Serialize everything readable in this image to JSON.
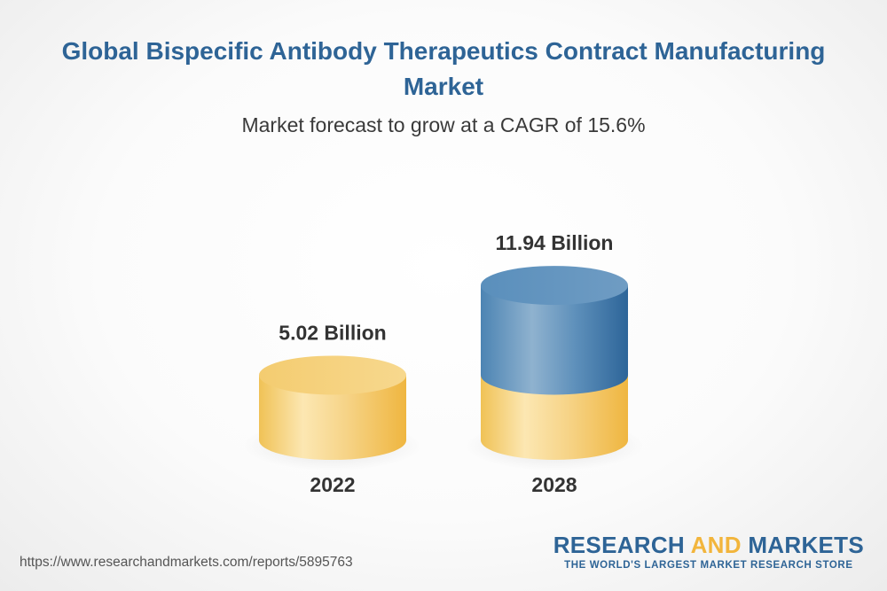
{
  "header": {
    "title": "Global Bispecific Antibody Therapeutics Contract Manufacturing Market",
    "subtitle": "Market forecast to grow at a CAGR of 15.6%"
  },
  "chart_data": {
    "type": "bar",
    "style": "3d-cylinder",
    "categories": [
      "2022",
      "2028"
    ],
    "values": [
      5.02,
      11.94
    ],
    "value_labels": [
      "5.02 Billion",
      "11.94 Billion"
    ],
    "title": "Global Bispecific Antibody Therapeutics Contract Manufacturing Market",
    "subtitle": "Market forecast to grow at a CAGR of 15.6%",
    "grid": false,
    "colors": {
      "base": "#f2c460",
      "growth": "#4f86b4"
    }
  },
  "footer": {
    "source_url": "https://www.researchandmarkets.com/reports/5895763",
    "brand_part1": "RESEARCH ",
    "brand_part2": "AND",
    "brand_part3": " MARKETS",
    "brand_tagline": "THE WORLD'S LARGEST MARKET RESEARCH STORE"
  }
}
